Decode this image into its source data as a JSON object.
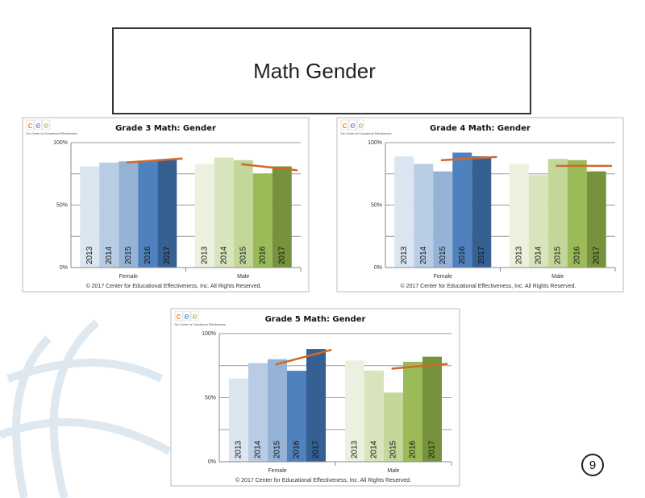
{
  "title": "Math Gender",
  "page_number": "9",
  "logo": {
    "letters": [
      "c",
      "e",
      "e"
    ],
    "colors": [
      "#e46c0a",
      "#4f81bd",
      "#9bbb59"
    ],
    "tagline": "The Center for Educational Effectiveness"
  },
  "copyright": "© 2017 Center for Educational Effectiveness, Inc. All Rights Reserved.",
  "chart_data": [
    {
      "type": "bar",
      "title": "Grade 3 Math: Gender",
      "categories": [
        "Female",
        "Male"
      ],
      "series": [
        {
          "name": "2013",
          "colors": [
            "#dce6f1",
            "#ebf1de"
          ],
          "values": [
            81,
            83
          ]
        },
        {
          "name": "2014",
          "colors": [
            "#b8cce4",
            "#d7e4bc"
          ],
          "values": [
            84,
            88
          ]
        },
        {
          "name": "2015",
          "colors": [
            "#95b3d7",
            "#c4d79b"
          ],
          "values": [
            85,
            86
          ]
        },
        {
          "name": "2016",
          "colors": [
            "#4f81bd",
            "#9bbb59"
          ],
          "values": [
            85,
            75
          ]
        },
        {
          "name": "2017",
          "colors": [
            "#366092",
            "#76923c"
          ],
          "values": [
            86,
            81
          ]
        }
      ],
      "ylim": [
        0,
        100
      ],
      "yticks": [
        {
          "value": 0,
          "label": "0%"
        },
        {
          "value": 50,
          "label": "50%"
        },
        {
          "value": 100,
          "label": "100%"
        }
      ],
      "grid_yticks": [
        25,
        75
      ],
      "grid": true,
      "trendline": true,
      "trend_color": "#d0692b"
    },
    {
      "type": "bar",
      "title": "Grade 4 Math: Gender",
      "categories": [
        "Female",
        "Male"
      ],
      "series": [
        {
          "name": "2013",
          "colors": [
            "#dce6f1",
            "#ebf1de"
          ],
          "values": [
            89,
            83
          ]
        },
        {
          "name": "2014",
          "colors": [
            "#b8cce4",
            "#d7e4bc"
          ],
          "values": [
            83,
            74
          ]
        },
        {
          "name": "2015",
          "colors": [
            "#95b3d7",
            "#c4d79b"
          ],
          "values": [
            77,
            87
          ]
        },
        {
          "name": "2016",
          "colors": [
            "#4f81bd",
            "#9bbb59"
          ],
          "values": [
            92,
            86
          ]
        },
        {
          "name": "2017",
          "colors": [
            "#366092",
            "#76923c"
          ],
          "values": [
            89,
            77
          ]
        }
      ],
      "ylim": [
        0,
        100
      ],
      "yticks": [
        {
          "value": 0,
          "label": "0%"
        },
        {
          "value": 50,
          "label": "50%"
        },
        {
          "value": 100,
          "label": "100%"
        }
      ],
      "grid_yticks": [
        25,
        75
      ],
      "grid": true,
      "trendline": true,
      "trend_color": "#d0692b"
    },
    {
      "type": "bar",
      "title": "Grade 5 Math: Gender",
      "categories": [
        "Female",
        "Male"
      ],
      "series": [
        {
          "name": "2013",
          "colors": [
            "#dce6f1",
            "#ebf1de"
          ],
          "values": [
            65,
            79
          ]
        },
        {
          "name": "2014",
          "colors": [
            "#b8cce4",
            "#d7e4bc"
          ],
          "values": [
            77,
            71
          ]
        },
        {
          "name": "2015",
          "colors": [
            "#95b3d7",
            "#c4d79b"
          ],
          "values": [
            80,
            54
          ]
        },
        {
          "name": "2016",
          "colors": [
            "#4f81bd",
            "#9bbb59"
          ],
          "values": [
            71,
            78
          ]
        },
        {
          "name": "2017",
          "colors": [
            "#366092",
            "#76923c"
          ],
          "values": [
            88,
            82
          ]
        }
      ],
      "ylim": [
        0,
        100
      ],
      "yticks": [
        {
          "value": 0,
          "label": "0%"
        },
        {
          "value": 50,
          "label": "50%"
        },
        {
          "value": 100,
          "label": "100%"
        }
      ],
      "grid_yticks": [
        25,
        75
      ],
      "grid": true,
      "trendline": true,
      "trend_color": "#d0692b"
    }
  ]
}
